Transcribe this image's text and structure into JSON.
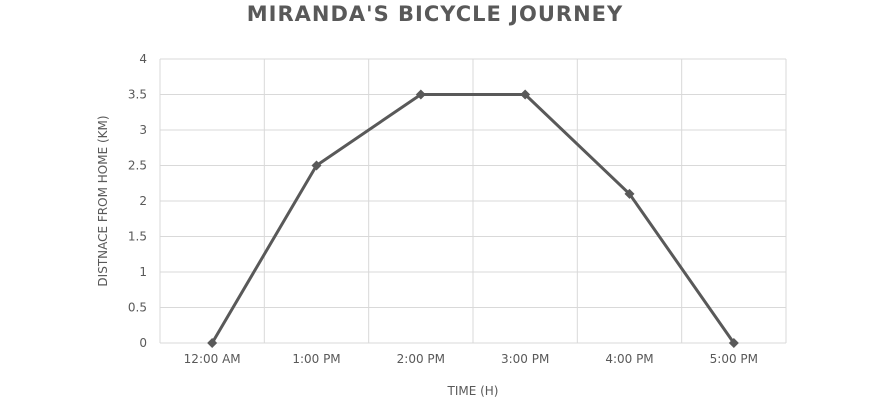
{
  "chart_data": {
    "type": "line",
    "title": "MIRANDA'S BICYCLE JOURNEY",
    "xlabel": "TIME (H)",
    "ylabel": "DISTNACE FROM HOME (KM)",
    "categories": [
      "12:00 AM",
      "1:00 PM",
      "2:00 PM",
      "3:00 PM",
      "4:00 PM",
      "5:00 PM"
    ],
    "series": [
      {
        "values": [
          0,
          2.5,
          3.5,
          3.5,
          2.1,
          0
        ]
      }
    ],
    "ylim": [
      0,
      4
    ],
    "yticks": [
      "0",
      "0.5",
      "1",
      "1.5",
      "2",
      "2.5",
      "3",
      "3.5",
      "4"
    ],
    "grid": true,
    "legend": "none",
    "colors": {
      "line": "#595959",
      "marker": "#595959",
      "grid": "#d9d9d9",
      "text": "#595959"
    }
  }
}
